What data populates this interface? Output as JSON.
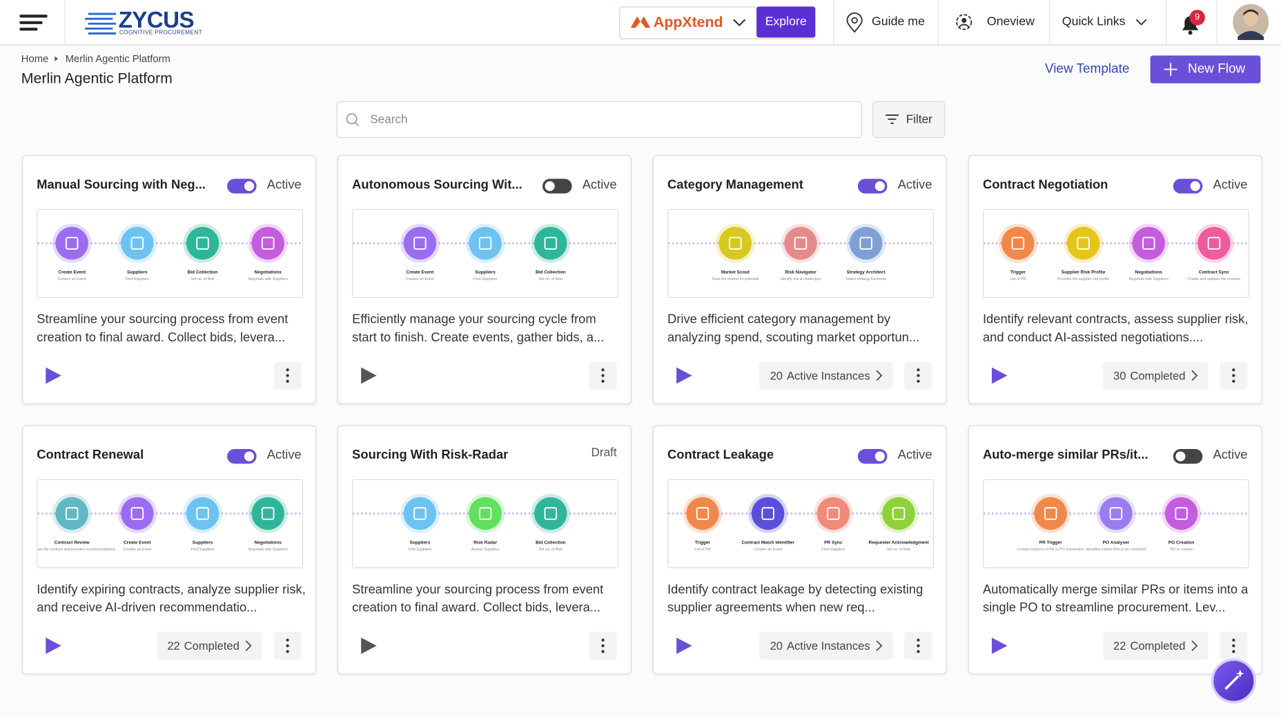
{
  "header": {
    "logo": "ZYCUS",
    "logo_subtitle": "COGNITIVE PROCUREMENT",
    "appxtend": "AppXtend",
    "explore": "Explore",
    "guide_me": "Guide me",
    "oneview": "Oneview",
    "quick_links": "Quick Links",
    "notifications": 9
  },
  "breadcrumb": [
    "Home",
    "Merlin Agentic Platform"
  ],
  "page_title": "Merlin Agentic Platform",
  "actions": {
    "view_template": "View Template",
    "new_flow": "New Flow"
  },
  "search_placeholder": "Search",
  "filter": "Filter",
  "cards": [
    {
      "title": "Manual Sourcing with Neg...",
      "status": "Active",
      "toggle": true,
      "play_color": "#6a4fd8",
      "description": "Streamline your sourcing process from event creation to final award. Collect bids, levera...",
      "nodes": [
        {
          "label": "Create Event",
          "sub": "Creates an Event",
          "color": "#9b6cf0"
        },
        {
          "label": "Suppliers",
          "sub": "Find Suppliers",
          "color": "#6cc3f2"
        },
        {
          "label": "Bid Collection",
          "sub": "Set no. of Bids",
          "color": "#2fb59a"
        },
        {
          "label": "Negotiations",
          "sub": "Negotiate with Suppliers",
          "color": "#c45ce0"
        }
      ]
    },
    {
      "title": "Autonomous Sourcing Wit...",
      "status": "Active",
      "toggle": false,
      "play_color": "#555555",
      "description": "Efficiently manage your sourcing cycle from start to finish. Create events, gather bids, a...",
      "nodes": [
        {
          "label": "Create Event",
          "sub": "Creates an Event",
          "color": "#9b6cf0"
        },
        {
          "label": "Suppliers",
          "sub": "Find Suppliers",
          "color": "#6cc3f2"
        },
        {
          "label": "Bid Collection",
          "sub": "Set no. of Bids",
          "color": "#2fb59a"
        }
      ]
    },
    {
      "title": "Category Management",
      "status": "Active",
      "toggle": true,
      "play_color": "#6a4fd8",
      "description": "Drive efficient category management by analyzing spend, scouting market opportun...",
      "nodes": [
        {
          "label": "Market Scout",
          "sub": "Scan the market for potential",
          "color": "#d6c91f"
        },
        {
          "label": "Risk Navigator",
          "sub": "Identify risk & challenges",
          "color": "#e58a8a"
        },
        {
          "label": "Strategy Architect",
          "sub": "Select strategy Elements",
          "color": "#7f9fd6"
        }
      ],
      "stats": {
        "count": 20,
        "label": "Active Instances"
      }
    },
    {
      "title": "Contract Negotiation",
      "status": "Active",
      "toggle": true,
      "play_color": "#6a4fd8",
      "description": "Identify relevant contracts, assess supplier risk, and conduct AI-assisted negotiations....",
      "nodes": [
        {
          "label": "Trigger",
          "sub": "List of PR",
          "color": "#f0884a"
        },
        {
          "label": "Supplier Risk Profile",
          "sub": "Provides the supplier risk profile",
          "color": "#e5c51c"
        },
        {
          "label": "Negotiations",
          "sub": "Negotiate with Suppliers",
          "color": "#c45ce0"
        },
        {
          "label": "Contract Sync",
          "sub": "Create and updates the contract",
          "color": "#ef5b9c"
        }
      ],
      "stats": {
        "count": 30,
        "label": "Completed"
      }
    },
    {
      "title": "Contract Renewal",
      "status": "Active",
      "toggle": true,
      "play_color": "#6a4fd8",
      "description": "Identify expiring contracts, analyze supplier risk, and receive AI-driven recommendatio...",
      "nodes": [
        {
          "label": "Contract Review",
          "sub": "Reviews the contract and provides recommendations",
          "color": "#5fb8c4"
        },
        {
          "label": "Create Event",
          "sub": "Creates an Event",
          "color": "#9b6cf0"
        },
        {
          "label": "Suppliers",
          "sub": "Find Suppliers",
          "color": "#6cc3f2"
        },
        {
          "label": "Negotiations",
          "sub": "Negotiate with Suppliers",
          "color": "#2fb59a"
        }
      ],
      "stats": {
        "count": 22,
        "label": "Completed"
      }
    },
    {
      "title": "Sourcing With Risk-Radar",
      "status": "Draft",
      "play_color": "#555555",
      "description": "Streamline your sourcing process from event creation to final award. Collect bids, levera...",
      "nodes": [
        {
          "label": "Suppliers",
          "sub": "Find Suppliers",
          "color": "#6cc3f2"
        },
        {
          "label": "Risk Radar",
          "sub": "Assess Suppliers",
          "color": "#5fe05f"
        },
        {
          "label": "Bid Collection",
          "sub": "Set no. of Bids",
          "color": "#2fb59a"
        }
      ]
    },
    {
      "title": "Contract Leakage",
      "status": "Active",
      "toggle": true,
      "play_color": "#6a4fd8",
      "description": "Identify contract leakage by detecting existing supplier agreements when new req...",
      "nodes": [
        {
          "label": "Trigger",
          "sub": "List of PR",
          "color": "#f0884a"
        },
        {
          "label": "Contract Match Identifier",
          "sub": "Creates an Event",
          "color": "#5a4fd8"
        },
        {
          "label": "PR Sync",
          "sub": "Find Suppliers",
          "color": "#f08a7a"
        },
        {
          "label": "Requester Acknowledgment",
          "sub": "Set no. of Bids",
          "color": "#8fd13a"
        }
      ],
      "stats": {
        "count": 20,
        "label": "Active Instances"
      }
    },
    {
      "title": "Auto-merge similar PRs/it...",
      "status": "Active",
      "toggle": false,
      "play_color": "#6a4fd8",
      "description": "Automatically merge similar PRs or items into a single PO to streamline procurement. Lev...",
      "nodes": [
        {
          "label": "PR Trigger",
          "sub": "Creates instance of PR to PO Conversion",
          "color": "#f0884a"
        },
        {
          "label": "PO Analyser",
          "sub": "Identifies similar PRs to be combined",
          "color": "#9b7cf0"
        },
        {
          "label": "PO Creation",
          "sub": "PO is created",
          "color": "#c45ce0"
        }
      ],
      "stats": {
        "count": 22,
        "label": "Completed"
      }
    }
  ]
}
